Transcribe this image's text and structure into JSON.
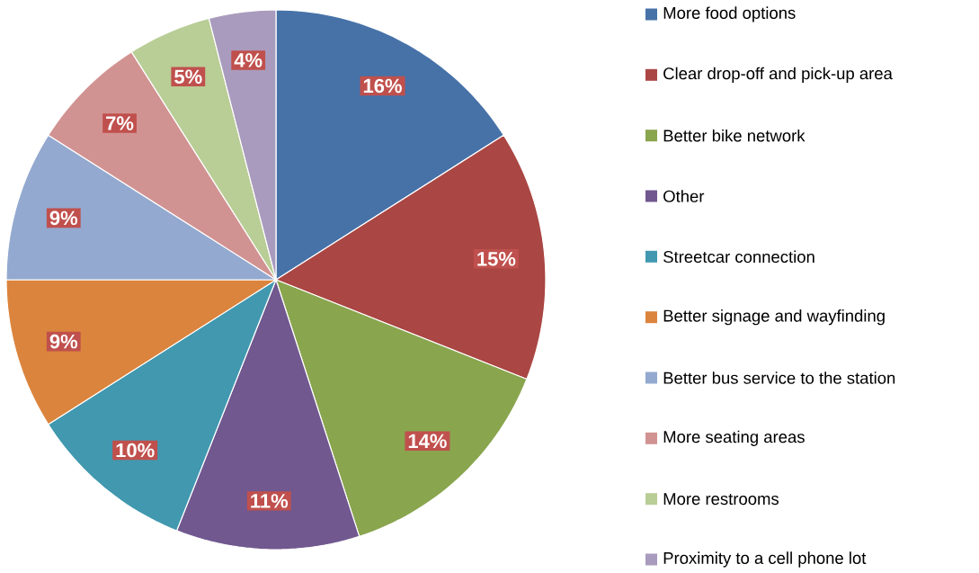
{
  "chart_data": {
    "type": "pie",
    "categories": [
      "More food options",
      "Clear drop-off and pick-up area",
      "Better bike network",
      "Other",
      "Streetcar connection",
      "Better signage and wayfinding",
      "Better bus service to the station",
      "More seating areas",
      "More restrooms",
      "Proximity to a cell phone lot"
    ],
    "values": [
      16,
      15,
      14,
      11,
      10,
      9,
      9,
      7,
      5,
      4
    ],
    "value_labels": [
      "16%",
      "15%",
      "14%",
      "11%",
      "10%",
      "9%",
      "9%",
      "7%",
      "5%",
      "4%"
    ],
    "colors": [
      "#4672a8",
      "#aa4643",
      "#89a54e",
      "#71588f",
      "#4198af",
      "#db843d",
      "#93a9cf",
      "#d19392",
      "#b9cd96",
      "#a99bbd"
    ],
    "legend": "right"
  }
}
